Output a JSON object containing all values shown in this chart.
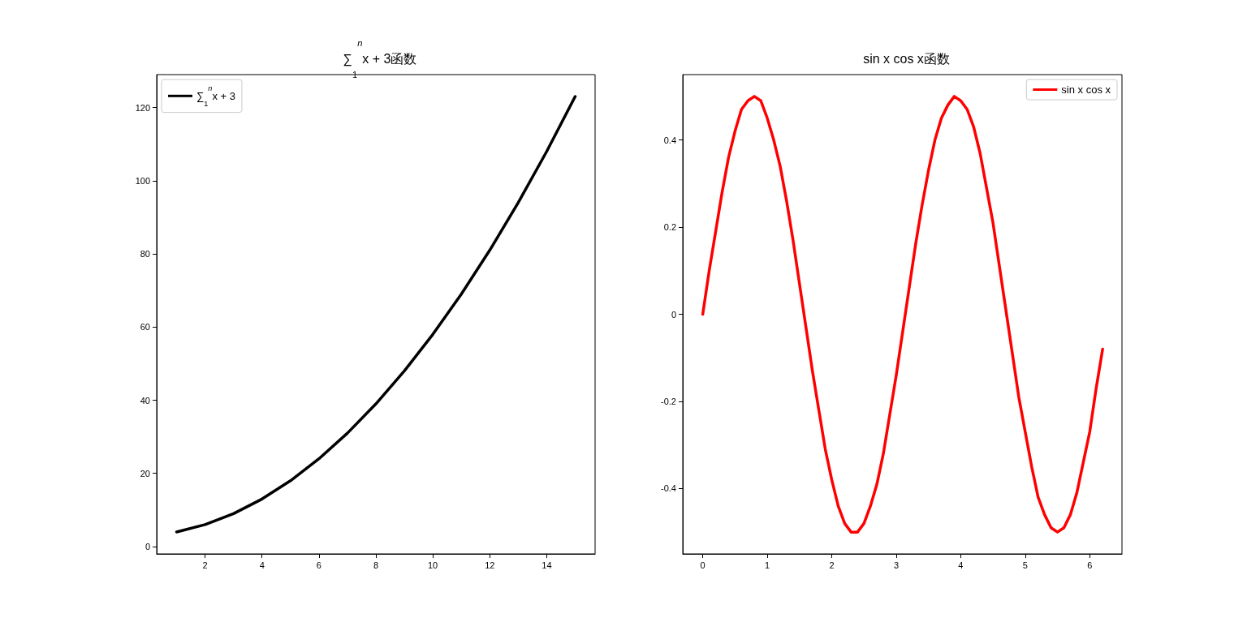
{
  "chart_data": [
    {
      "type": "line",
      "title": "∑$_{1}$$^{n}$x + 3函数",
      "x": [
        1,
        2,
        3,
        4,
        5,
        6,
        7,
        8,
        9,
        10,
        11,
        12,
        13,
        14,
        15
      ],
      "series": [
        {
          "name": "∑$_{1}$$^{n}$x + 3",
          "color": "#000000",
          "values": [
            4,
            6,
            9,
            13,
            18,
            24,
            31,
            39,
            48,
            58,
            69,
            81,
            94,
            108,
            123
          ]
        }
      ],
      "xlim": [
        0.3,
        15.7
      ],
      "xticks": [
        2,
        4,
        6,
        8,
        10,
        12,
        14
      ],
      "ylim": [
        -2,
        129
      ],
      "yticks": [
        0,
        20,
        40,
        60,
        80,
        100,
        120
      ],
      "grid": false,
      "legend": "top left",
      "marker": "none",
      "line_style": "solid"
    },
    {
      "type": "line",
      "title": "sin x cos x函数",
      "x": [
        0,
        0.1,
        0.2,
        0.3,
        0.4,
        0.5,
        0.6,
        0.7,
        0.8,
        0.9,
        1,
        1.1,
        1.2,
        1.3,
        1.4,
        1.5,
        1.6,
        1.7,
        1.8,
        1.9,
        2,
        2.1,
        2.2,
        2.3,
        2.4,
        2.5,
        2.6,
        2.7,
        2.8,
        2.9,
        3,
        3.1,
        3.2,
        3.3,
        3.4,
        3.5,
        3.6,
        3.7,
        3.8,
        3.9,
        4,
        4.1,
        4.2,
        4.3,
        4.4,
        4.5,
        4.6,
        4.7,
        4.8,
        4.9,
        5,
        5.1,
        5.2,
        5.3,
        5.4,
        5.5,
        5.6,
        5.7,
        5.8,
        5.9,
        6,
        6.1,
        6.2
      ],
      "series": [
        {
          "name": "sin x cos x",
          "color": "#ff0000",
          "values": [
            0,
            0.1,
            0.19,
            0.28,
            0.36,
            0.42,
            0.47,
            0.49,
            0.5,
            0.49,
            0.45,
            0.4,
            0.34,
            0.26,
            0.17,
            0.07,
            -0.03,
            -0.13,
            -0.22,
            -0.31,
            -0.38,
            -0.44,
            -0.48,
            -0.5,
            -0.5,
            -0.48,
            -0.44,
            -0.39,
            -0.32,
            -0.23,
            -0.14,
            -0.04,
            0.06,
            0.16,
            0.25,
            0.33,
            0.4,
            0.45,
            0.48,
            0.5,
            0.49,
            0.47,
            0.43,
            0.37,
            0.29,
            0.21,
            0.11,
            0.01,
            -0.09,
            -0.19,
            -0.27,
            -0.35,
            -0.42,
            -0.46,
            -0.49,
            -0.5,
            -0.49,
            -0.46,
            -0.41,
            -0.34,
            -0.27,
            -0.17,
            -0.08
          ]
        }
      ],
      "xlim": [
        -0.31,
        6.5
      ],
      "xticks": [
        0,
        1,
        2,
        3,
        4,
        5,
        6
      ],
      "ylim": [
        -0.55,
        0.55
      ],
      "yticks": [
        -0.4,
        -0.2,
        0,
        0.2,
        0.4
      ],
      "grid": false,
      "legend": "top right",
      "marker": "none",
      "line_style": "solid"
    }
  ]
}
